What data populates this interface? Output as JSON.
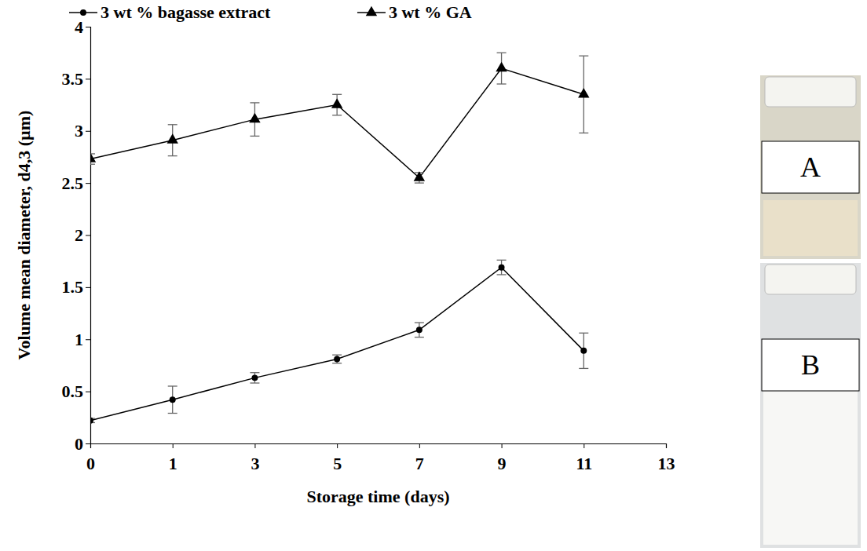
{
  "chart_data": {
    "type": "line",
    "x_label": "Storage time (days)",
    "y_label": "Volume mean diameter, d4,3 (µm)",
    "categories": [
      "0",
      "1",
      "3",
      "5",
      "7",
      "9",
      "11",
      "13"
    ],
    "ylim": [
      0,
      4
    ],
    "yticks": [
      0,
      0.5,
      1,
      1.5,
      2,
      2.5,
      3,
      3.5,
      4
    ],
    "legend": "top",
    "series": [
      {
        "name": "3 wt % bagasse extract",
        "color": "#000000",
        "marker": "circle",
        "values": [
          0.22,
          0.42,
          0.63,
          0.81,
          1.09,
          1.69,
          0.89,
          null
        ],
        "errors": [
          0.02,
          0.13,
          0.05,
          0.04,
          0.07,
          0.07,
          0.17,
          null
        ]
      },
      {
        "name": "3 wt % GA",
        "color": "#000000",
        "marker": "triangle",
        "values": [
          2.73,
          2.91,
          3.11,
          3.25,
          2.55,
          3.6,
          3.35,
          null
        ],
        "errors": [
          0.05,
          0.15,
          0.16,
          0.1,
          0.05,
          0.15,
          0.37,
          null
        ]
      }
    ]
  },
  "images": [
    {
      "label": "A"
    },
    {
      "label": "B"
    }
  ]
}
